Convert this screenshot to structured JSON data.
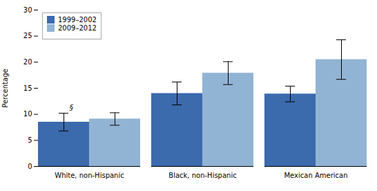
{
  "chart_data": {
    "type": "bar",
    "categories": [
      "White, non-Hispanic",
      "Black, non-Hispanic",
      "Mexican American"
    ],
    "series": [
      {
        "name": "1999–2002",
        "color": "#3B6AAD",
        "values": [
          8.5,
          14.0,
          13.9
        ],
        "errors": [
          1.7,
          2.2,
          1.5
        ]
      },
      {
        "name": "2009–2012",
        "color": "#92B4D4",
        "values": [
          9.1,
          17.9,
          20.5
        ],
        "errors": [
          1.2,
          2.2,
          3.8
        ]
      }
    ],
    "ylabel": "Percentage",
    "ylim": [
      0,
      30
    ],
    "yticks": [
      0,
      5,
      10,
      15,
      20,
      25,
      30
    ],
    "grid": false,
    "legend": "upper left",
    "annotations": [
      {
        "text": "§",
        "category": "White, non-Hispanic",
        "series": "1999–2002"
      }
    ]
  }
}
